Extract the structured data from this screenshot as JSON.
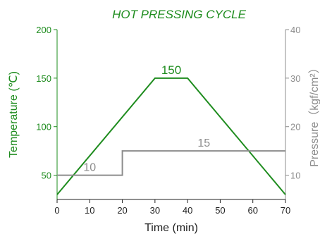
{
  "chart_data": {
    "type": "line",
    "title": "HOT PRESSING CYCLE",
    "xlabel": "Time (min)",
    "ylabel_left": "Temperature (℃)",
    "ylabel_right": "Pressure（kgf/cm²）",
    "xlim": [
      0,
      70
    ],
    "ylim_left": [
      25,
      200
    ],
    "ylim_right": [
      5,
      40
    ],
    "x_ticks": [
      0,
      10,
      20,
      30,
      40,
      50,
      60,
      70
    ],
    "y_left_ticks": [
      50,
      100,
      150,
      200
    ],
    "y_right_ticks": [
      10,
      20,
      30,
      40
    ],
    "grid": false,
    "colors": {
      "temperature": "#1e8c1e",
      "pressure": "#8c8c8c",
      "axis": "#222222"
    },
    "series": [
      {
        "axis": "left",
        "x": [
          0,
          30,
          40,
          70
        ],
        "y": [
          30,
          150,
          150,
          30
        ],
        "step": false
      },
      {
        "axis": "right",
        "x": [
          0,
          20,
          20,
          70
        ],
        "y": [
          10,
          10,
          15,
          15
        ],
        "step": true
      }
    ],
    "annotations": [
      {
        "text": "150",
        "x": 35,
        "y": 150,
        "axis": "left"
      },
      {
        "text": "10",
        "x": 10,
        "y": 10,
        "axis": "right"
      },
      {
        "text": "15",
        "x": 45,
        "y": 15,
        "axis": "right"
      }
    ]
  }
}
